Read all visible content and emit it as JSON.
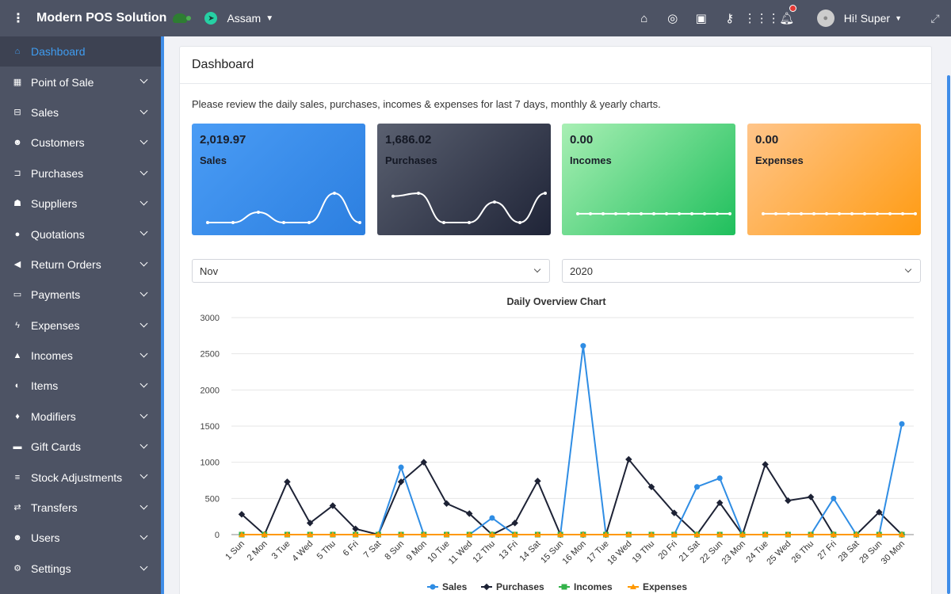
{
  "app": {
    "title": "Modern POS Solution",
    "store": "Assam",
    "user": "Hi! Super"
  },
  "sidebar": {
    "items": [
      {
        "label": "Dashboard",
        "icon": "home-icon"
      },
      {
        "label": "Point of Sale",
        "icon": "grid-icon"
      },
      {
        "label": "Sales",
        "icon": "basket-icon"
      },
      {
        "label": "Customers",
        "icon": "users-icon"
      },
      {
        "label": "Purchases",
        "icon": "cart-icon"
      },
      {
        "label": "Suppliers",
        "icon": "supplier-icon"
      },
      {
        "label": "Quotations",
        "icon": "quote-icon"
      },
      {
        "label": "Return Orders",
        "icon": "return-icon"
      },
      {
        "label": "Payments",
        "icon": "money-icon"
      },
      {
        "label": "Expenses",
        "icon": "bolt-icon"
      },
      {
        "label": "Incomes",
        "icon": "flask-icon"
      },
      {
        "label": "Items",
        "icon": "items-icon"
      },
      {
        "label": "Modifiers",
        "icon": "pin-icon"
      },
      {
        "label": "Gift Cards",
        "icon": "card-icon"
      },
      {
        "label": "Stock Adjustments",
        "icon": "sliders-icon"
      },
      {
        "label": "Transfers",
        "icon": "transfer-icon"
      },
      {
        "label": "Users",
        "icon": "users-group-icon"
      },
      {
        "label": "Settings",
        "icon": "gear-icon"
      }
    ]
  },
  "page": {
    "title": "Dashboard",
    "intro": "Please review the daily sales, purchases, incomes & expenses for last 7 days, monthly & yearly charts."
  },
  "stats": {
    "sales": {
      "value": "2,019.97",
      "label": "Sales"
    },
    "purchases": {
      "value": "1,686.02",
      "label": "Purchases"
    },
    "incomes": {
      "value": "0.00",
      "label": "Incomes"
    },
    "expenses": {
      "value": "0.00",
      "label": "Expenses"
    }
  },
  "filters": {
    "month": "Nov",
    "year": "2020"
  },
  "colors": {
    "sales": "#2f8de4",
    "purchases": "#1d2235",
    "incomes": "#33b249",
    "expenses": "#ff9800"
  },
  "chart_data": {
    "type": "line",
    "title": "Daily Overview Chart",
    "ylim": [
      0,
      3000
    ],
    "yticks": [
      0,
      500,
      1000,
      1500,
      2000,
      2500,
      3000
    ],
    "categories": [
      "1 Sun",
      "2 Mon",
      "3 Tue",
      "4 Wed",
      "5 Thu",
      "6 Fri",
      "7 Sat",
      "8 Sun",
      "9 Mon",
      "10 Tue",
      "11 Wed",
      "12 Thu",
      "13 Fri",
      "14 Sat",
      "15 Sun",
      "16 Mon",
      "17 Tue",
      "18 Wed",
      "19 Thu",
      "20 Fri",
      "21 Sat",
      "22 Sun",
      "23 Mon",
      "24 Tue",
      "25 Wed",
      "26 Thu",
      "27 Fri",
      "28 Sat",
      "29 Sun",
      "30 Mon"
    ],
    "series": [
      {
        "name": "Sales",
        "values": [
          0,
          0,
          0,
          0,
          0,
          0,
          0,
          930,
          0,
          0,
          0,
          230,
          0,
          0,
          0,
          2610,
          0,
          0,
          0,
          0,
          660,
          780,
          0,
          0,
          0,
          0,
          500,
          0,
          0,
          1530
        ]
      },
      {
        "name": "Purchases",
        "values": [
          280,
          0,
          730,
          160,
          400,
          80,
          0,
          730,
          1000,
          430,
          290,
          0,
          160,
          740,
          0,
          0,
          0,
          1040,
          660,
          300,
          0,
          440,
          0,
          970,
          470,
          520,
          0,
          0,
          310,
          0
        ]
      },
      {
        "name": "Incomes",
        "values": [
          0,
          0,
          0,
          0,
          0,
          0,
          0,
          0,
          0,
          0,
          0,
          0,
          0,
          0,
          0,
          0,
          0,
          0,
          0,
          0,
          0,
          0,
          0,
          0,
          0,
          0,
          0,
          0,
          0,
          0
        ]
      },
      {
        "name": "Expenses",
        "values": [
          0,
          0,
          0,
          0,
          0,
          0,
          0,
          0,
          0,
          0,
          0,
          0,
          0,
          0,
          0,
          0,
          0,
          0,
          0,
          0,
          0,
          0,
          0,
          0,
          0,
          0,
          0,
          0,
          0,
          0
        ]
      }
    ],
    "legend": "bottom"
  },
  "sparklines": {
    "sales": [
      0,
      0,
      0.35,
      0,
      0,
      1.0,
      0
    ],
    "purchases": [
      0.9,
      1.0,
      0,
      0,
      0.7,
      0,
      1.0
    ],
    "incomes": [
      0,
      0,
      0,
      0,
      0,
      0,
      0,
      0,
      0,
      0,
      0,
      0,
      0
    ],
    "expenses": [
      0,
      0,
      0,
      0,
      0,
      0,
      0,
      0,
      0,
      0,
      0,
      0,
      0
    ]
  }
}
